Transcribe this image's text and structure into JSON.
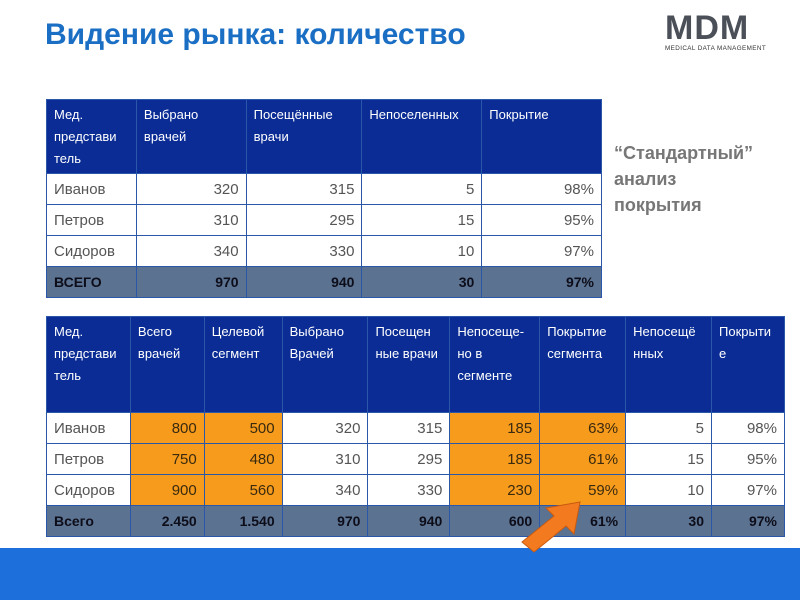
{
  "title": "Видение рынка: количество",
  "logo": {
    "letters": "MDM",
    "subtitle": "MEDICAL DATA MANAGEMENT"
  },
  "side_note": [
    "“Стандартный”",
    "анализ",
    "покрытия"
  ],
  "colors": {
    "title": "#1a6fc4",
    "header_bg": "#0a2c94",
    "highlight": "#f79b1c",
    "total_bg": "#5b7290",
    "footer": "#1d6fdc"
  },
  "table1": {
    "headers": [
      "Мед. представи тель",
      "Выбрано врачей",
      "Посещённые врачи",
      "Непоселенных",
      "Покрытие"
    ],
    "rows": [
      [
        "Иванов",
        "320",
        "315",
        "5",
        "98%"
      ],
      [
        "Петров",
        "310",
        "295",
        "15",
        "95%"
      ],
      [
        "Сидоров",
        "340",
        "330",
        "10",
        "97%"
      ]
    ],
    "total": [
      "ВСЕГО",
      "970",
      "940",
      "30",
      "97%"
    ]
  },
  "table2": {
    "headers": [
      "Мед. представи тель",
      "Всего врачей",
      "Целевой сегмент",
      "Выбрано Врачей",
      "Посещен ные врачи",
      "Непосеще-но в сегменте",
      "Покрытие сегмента",
      "Непосещё нных",
      "Покрыти е"
    ],
    "rows": [
      [
        "Иванов",
        "800",
        "500",
        "320",
        "315",
        "185",
        "63%",
        "5",
        "98%"
      ],
      [
        "Петров",
        "750",
        "480",
        "310",
        "295",
        "185",
        "61%",
        "15",
        "95%"
      ],
      [
        "Сидоров",
        "900",
        "560",
        "340",
        "330",
        "230",
        "59%",
        "10",
        "97%"
      ]
    ],
    "total": [
      "Всего",
      "2.450",
      "1.540",
      "970",
      "940",
      "600",
      "61%",
      "30",
      "97%"
    ]
  }
}
